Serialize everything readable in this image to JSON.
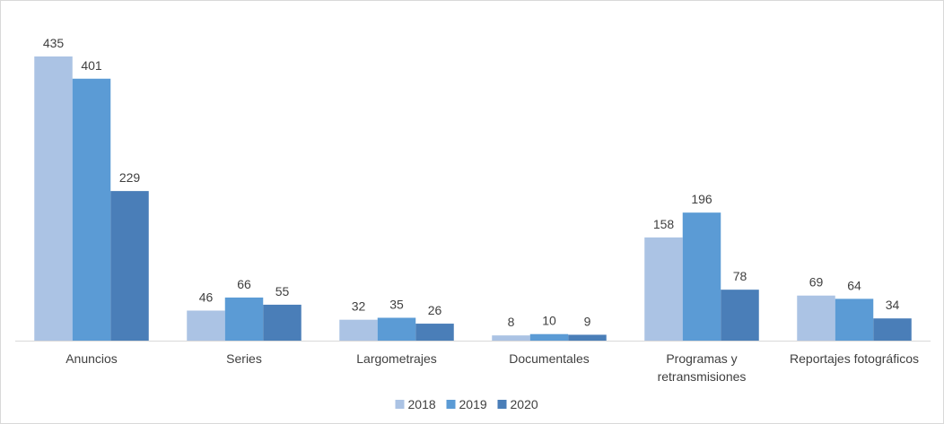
{
  "chart_data": {
    "type": "bar",
    "title": "",
    "xlabel": "",
    "ylabel": "",
    "categories": [
      [
        "Anuncios"
      ],
      [
        "Series"
      ],
      [
        "Largometrajes"
      ],
      [
        "Documentales"
      ],
      [
        "Programas y",
        "retransmisiones"
      ],
      [
        "Reportajes fotográficos"
      ]
    ],
    "series": [
      {
        "name": "2018",
        "color": "#abc3e4",
        "values": [
          435,
          46,
          32,
          8,
          158,
          69
        ]
      },
      {
        "name": "2019",
        "color": "#5b9bd5",
        "values": [
          401,
          66,
          35,
          10,
          196,
          64
        ]
      },
      {
        "name": "2020",
        "color": "#4a7eb8",
        "values": [
          229,
          55,
          26,
          9,
          78,
          34
        ]
      }
    ],
    "ylim": [
      0,
      435
    ],
    "grid": false,
    "data_labels": true,
    "legend_position": "bottom"
  }
}
